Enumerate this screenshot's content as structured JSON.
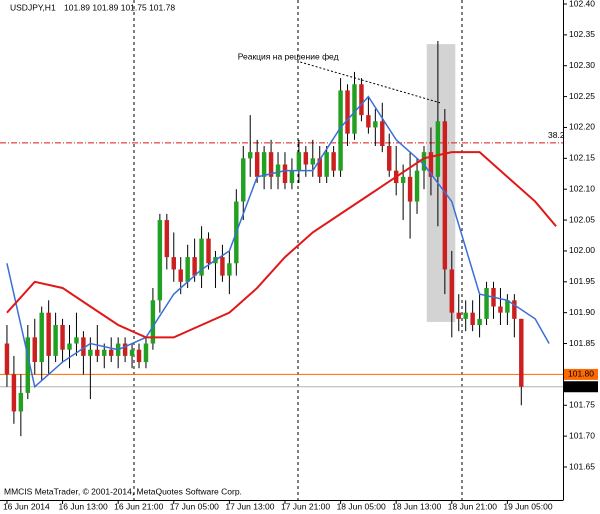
{
  "chart_data": {
    "type": "candlestick",
    "title": "USDJPY,H1",
    "header_values": "101.89 101.89 101.75 101.78",
    "footer": "MMCIS MetaTrader, © 2001-2014, MetaQuotes Software Corp.",
    "annotation": {
      "text": "Реакция на решение фед",
      "x": 33.2,
      "y": 102.314,
      "line": {
        "x": [
          42.2,
          62.3
        ],
        "y": [
          102.306,
          102.24
        ]
      }
    },
    "up_color": "#22a022",
    "down_color": "#cc2020",
    "open": [
      101.85,
      101.8,
      101.74,
      101.77,
      101.86,
      101.82,
      101.9,
      101.83,
      101.88,
      101.84,
      101.85,
      101.86,
      101.83,
      101.84,
      101.83,
      101.84,
      101.83,
      101.85,
      101.83,
      101.84,
      101.82,
      101.85,
      101.92,
      102.05,
      101.99,
      101.97,
      101.95,
      101.99,
      101.96,
      102.02,
      101.98,
      101.99,
      101.96,
      101.98,
      102.08,
      102.15,
      102.16,
      102.12,
      102.16,
      102.12,
      102.14,
      102.11,
      102.13,
      102.16,
      102.14,
      102.15,
      102.12,
      102.16,
      102.13,
      102.26,
      102.19,
      102.27,
      102.22,
      102.2,
      102.21,
      102.17,
      102.13,
      102.11,
      102.12,
      102.08,
      102.13,
      102.16,
      102.12,
      102.21,
      101.97,
      101.9,
      101.89,
      101.9,
      101.88,
      101.89,
      101.94,
      101.91,
      101.9,
      101.92,
      101.89
    ],
    "high": [
      101.88,
      101.83,
      101.8,
      101.88,
      101.89,
      101.91,
      101.92,
      101.9,
      101.89,
      101.88,
      101.9,
      101.87,
      101.86,
      101.88,
      101.85,
      101.86,
      101.86,
      101.86,
      101.85,
      101.85,
      101.86,
      101.94,
      102.06,
      102.06,
      102.03,
      101.99,
      102.01,
      102.02,
      102.04,
      102.03,
      102.0,
      102.01,
      102.0,
      102.1,
      102.17,
      102.22,
      102.18,
      102.17,
      102.18,
      102.16,
      102.16,
      102.15,
      102.18,
      102.17,
      102.18,
      102.17,
      102.17,
      102.17,
      102.28,
      102.27,
      102.29,
      102.28,
      102.25,
      102.23,
      102.24,
      102.19,
      102.17,
      102.14,
      102.16,
      102.15,
      102.17,
      102.2,
      102.34,
      102.23,
      102.0,
      101.93,
      101.92,
      101.92,
      101.93,
      101.95,
      101.95,
      101.94,
      101.93,
      101.93,
      101.89
    ],
    "low": [
      101.78,
      101.72,
      101.7,
      101.76,
      101.8,
      101.79,
      101.8,
      101.82,
      101.82,
      101.81,
      101.83,
      101.8,
      101.76,
      101.82,
      101.81,
      101.82,
      101.81,
      101.82,
      101.81,
      101.81,
      101.81,
      101.84,
      101.9,
      101.97,
      101.95,
      101.93,
      101.94,
      101.95,
      101.94,
      101.97,
      101.94,
      101.95,
      101.93,
      101.96,
      102.05,
      102.12,
      102.11,
      102.1,
      102.1,
      102.1,
      102.1,
      102.1,
      102.11,
      102.12,
      102.12,
      102.11,
      102.11,
      102.12,
      102.12,
      102.17,
      102.18,
      102.21,
      102.19,
      102.17,
      102.16,
      102.12,
      102.09,
      102.05,
      102.02,
      102.06,
      102.1,
      102.09,
      102.04,
      101.93,
      101.86,
      101.87,
      101.87,
      101.87,
      101.86,
      101.88,
      101.89,
      101.88,
      101.88,
      101.86,
      101.75
    ],
    "close": [
      101.8,
      101.74,
      101.77,
      101.86,
      101.82,
      101.9,
      101.83,
      101.88,
      101.84,
      101.85,
      101.86,
      101.83,
      101.84,
      101.83,
      101.84,
      101.83,
      101.85,
      101.83,
      101.84,
      101.82,
      101.85,
      101.92,
      102.05,
      101.99,
      101.97,
      101.95,
      101.99,
      101.96,
      102.02,
      101.98,
      101.99,
      101.96,
      101.98,
      102.08,
      102.15,
      102.16,
      102.12,
      102.16,
      102.12,
      102.14,
      102.11,
      102.13,
      102.16,
      102.14,
      102.15,
      102.12,
      102.16,
      102.13,
      102.26,
      102.19,
      102.27,
      102.22,
      102.2,
      102.21,
      102.17,
      102.13,
      102.11,
      102.12,
      102.08,
      102.13,
      102.16,
      102.12,
      102.21,
      101.97,
      101.9,
      101.89,
      101.9,
      101.88,
      101.89,
      101.94,
      101.91,
      101.9,
      101.92,
      101.89,
      101.78
    ],
    "series": [
      {
        "color": "#3a6fd8",
        "x": [
          0,
          4,
          8,
          12,
          16,
          20,
          24,
          28,
          32,
          36,
          40,
          44,
          48,
          52,
          56,
          60,
          64,
          68,
          72,
          76,
          78
        ],
        "values": [
          101.98,
          101.78,
          101.82,
          101.85,
          101.84,
          101.86,
          101.93,
          101.97,
          102.0,
          102.12,
          102.13,
          102.13,
          102.2,
          102.25,
          102.18,
          102.14,
          102.08,
          101.93,
          101.92,
          101.89,
          101.85
        ]
      },
      {
        "color": "#e01818",
        "x": [
          0,
          4,
          8,
          12,
          16,
          20,
          24,
          28,
          32,
          36,
          40,
          44,
          48,
          52,
          56,
          60,
          64,
          68,
          72,
          76,
          79
        ],
        "values": [
          101.9,
          101.95,
          101.94,
          101.91,
          101.88,
          101.86,
          101.86,
          101.88,
          101.9,
          101.94,
          101.99,
          102.03,
          102.06,
          102.09,
          102.12,
          102.15,
          102.16,
          102.16,
          102.12,
          102.08,
          102.04
        ]
      }
    ],
    "zone": {
      "x": [
        60.4,
        64.5
      ],
      "y": [
        101.885,
        102.335
      ],
      "color": "#d3d3d3"
    },
    "fib_line": {
      "value": 102.175,
      "label": "38.2",
      "color": "#e01818"
    },
    "hlines": [
      {
        "value": 101.8,
        "label": "101.80",
        "color": "#ff6a00",
        "text_color": "#ffffff"
      },
      {
        "value": 101.78,
        "label": "101.78",
        "color": "#000000",
        "line_color": "#b0b0b0",
        "text_color": "#ffffff"
      }
    ],
    "xlim": [
      -1,
      80
    ],
    "ylim": [
      101.65,
      102.4
    ],
    "yticks": [
      {
        "value": 102.4,
        "label": "102.40"
      },
      102.35,
      {
        "value": 102.3,
        "label": "102.30"
      },
      102.25,
      {
        "value": 102.2,
        "label": "102.20"
      },
      102.15,
      {
        "value": 102.1,
        "label": "102.10"
      },
      102.05,
      {
        "value": 102.0,
        "label": "102.00"
      },
      101.95,
      {
        "value": 101.9,
        "label": "101.90"
      },
      101.85,
      101.75,
      {
        "value": 101.7,
        "label": "101.70"
      },
      101.65
    ],
    "xticks": [
      {
        "value": 0,
        "label": "16 Jun 2014"
      },
      {
        "value": 8,
        "label": "16 Jun 13:00"
      },
      {
        "value": 16,
        "label": "16 Jun 21:00"
      },
      {
        "value": 24,
        "label": "17 Jun 05:00"
      },
      {
        "value": 32,
        "label": "17 Jun 13:00"
      },
      {
        "value": 40,
        "label": "17 Jun 21:00"
      },
      {
        "value": 48,
        "label": "18 Jun 05:00"
      },
      {
        "value": 56,
        "label": "18 Jun 13:00"
      },
      {
        "value": 64,
        "label": "18 Jun 21:00"
      },
      {
        "value": 72,
        "label": "19 Jun 05:00"
      }
    ]
  }
}
